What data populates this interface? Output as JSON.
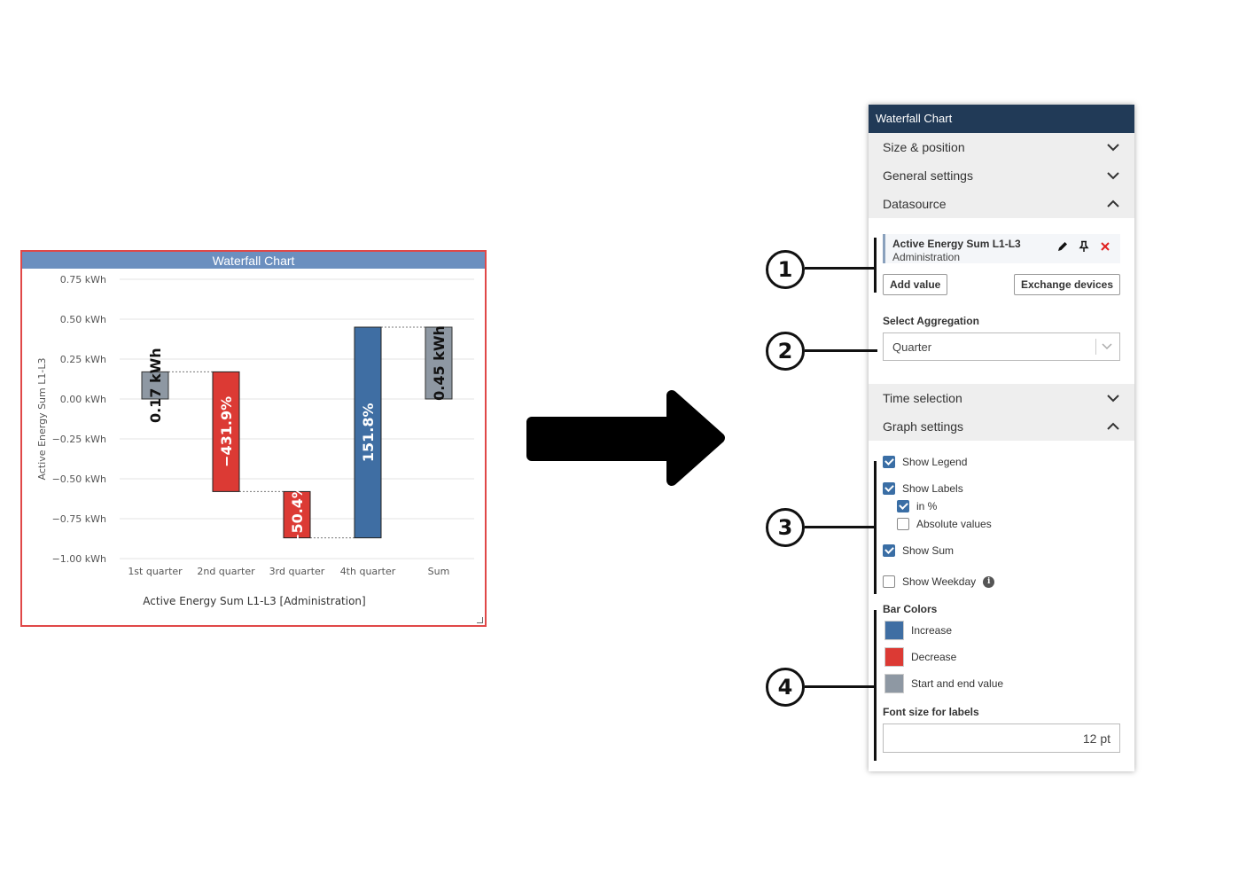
{
  "chart_widget": {
    "title": "Waterfall Chart",
    "chart_data": {
      "type": "bar",
      "subtype": "waterfall",
      "title": "Waterfall Chart",
      "ylabel": "Active Energy Sum L1-L3",
      "xlabel": "Active Energy Sum L1-L3 [Administration]",
      "y_unit": "kWh",
      "ylim": [
        -1.0,
        0.75
      ],
      "y_ticks": [
        {
          "value": 0.75,
          "label": "0.75 kWh"
        },
        {
          "value": 0.5,
          "label": "0.50 kWh"
        },
        {
          "value": 0.25,
          "label": "0.25 kWh"
        },
        {
          "value": 0.0,
          "label": "0.00 kWh"
        },
        {
          "value": -0.25,
          "label": "−0.25 kWh"
        },
        {
          "value": -0.5,
          "label": "−0.50 kWh"
        },
        {
          "value": -0.75,
          "label": "−0.75 kWh"
        },
        {
          "value": -1.0,
          "label": "−1.00 kWh"
        }
      ],
      "categories": [
        "1st quarter",
        "2nd quarter",
        "3rd quarter",
        "4th quarter",
        "Sum"
      ],
      "bars": [
        {
          "category": "1st quarter",
          "kind": "start",
          "start": 0.0,
          "end": 0.17,
          "label": "0.17 kWh"
        },
        {
          "category": "2nd quarter",
          "kind": "decrease",
          "start": 0.17,
          "end": -0.58,
          "label": "−431.9%"
        },
        {
          "category": "3rd quarter",
          "kind": "decrease",
          "start": -0.58,
          "end": -0.87,
          "label": "−50.4%"
        },
        {
          "category": "4th quarter",
          "kind": "increase",
          "start": -0.87,
          "end": 0.45,
          "label": "151.8%"
        },
        {
          "category": "Sum",
          "kind": "end",
          "start": 0.0,
          "end": 0.45,
          "label": "0.45 kWh"
        }
      ],
      "colors": {
        "increase": "#3f6ea3",
        "decrease": "#dc3a34",
        "start_end": "#8e98a3"
      },
      "grid": true,
      "legend": "none"
    }
  },
  "panel": {
    "title": "Waterfall Chart",
    "sections": {
      "size_position": "Size & position",
      "general_settings": "General settings",
      "datasource": "Datasource",
      "time_selection": "Time selection",
      "graph_settings": "Graph settings"
    },
    "datasource": {
      "name": "Active Energy Sum L1-L3",
      "sub": "Administration",
      "icons": [
        "pencil-icon",
        "pin-icon",
        "close-icon"
      ],
      "add_value": "Add value",
      "exchange_devices": "Exchange devices"
    },
    "aggregation": {
      "label": "Select Aggregation",
      "value": "Quarter"
    },
    "graph": {
      "show_legend": "Show Legend",
      "show_labels": "Show Labels",
      "in_percent": "in %",
      "absolute_values": "Absolute values",
      "show_sum": "Show Sum",
      "show_weekday": "Show Weekday",
      "bar_colors": "Bar Colors",
      "increase": "Increase",
      "decrease": "Decrease",
      "start_end": "Start and end value",
      "font_size_label": "Font size for labels",
      "font_size_value": "12 pt"
    }
  },
  "callouts": [
    "1",
    "2",
    "3",
    "4"
  ]
}
